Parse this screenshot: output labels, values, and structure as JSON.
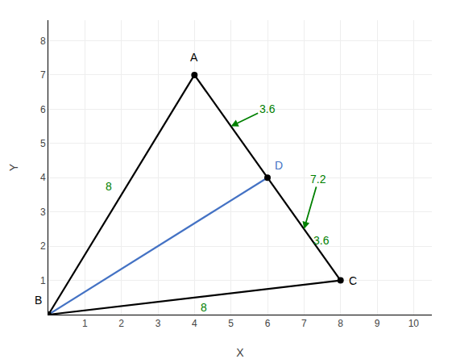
{
  "chart_data": {
    "type": "line",
    "xlabel": "X",
    "ylabel": "Y",
    "xlim": [
      0,
      10.5
    ],
    "ylim": [
      0,
      8.6
    ],
    "xticks": [
      1,
      2,
      3,
      4,
      5,
      6,
      7,
      8,
      9,
      10
    ],
    "yticks": [
      1,
      2,
      3,
      4,
      5,
      6,
      7,
      8
    ],
    "grid": true,
    "series": [
      {
        "x": [
          4,
          0,
          8,
          4
        ],
        "y": [
          7,
          0,
          1,
          7
        ],
        "color": "black",
        "line_style": "solid"
      },
      {
        "x": [
          0,
          6
        ],
        "y": [
          0,
          4
        ],
        "color": "#4472C4",
        "line_style": "solid"
      }
    ],
    "points": {
      "x": [
        4,
        0,
        8,
        6
      ],
      "y": [
        7,
        0,
        1,
        4
      ],
      "labels": [
        "A",
        "B",
        "C",
        "D"
      ],
      "label_colors": [
        "black",
        "black",
        "black",
        "#4472C4"
      ],
      "color": "black",
      "marker": "circle"
    },
    "annotations": [
      {
        "text": "8",
        "color": "#008000"
      },
      {
        "text": "8",
        "color": "#008000"
      },
      {
        "text": "3.6",
        "color": "#008000"
      },
      {
        "text": "7.2",
        "color": "#008000"
      },
      {
        "text": "3.6",
        "color": "#008000"
      }
    ]
  }
}
